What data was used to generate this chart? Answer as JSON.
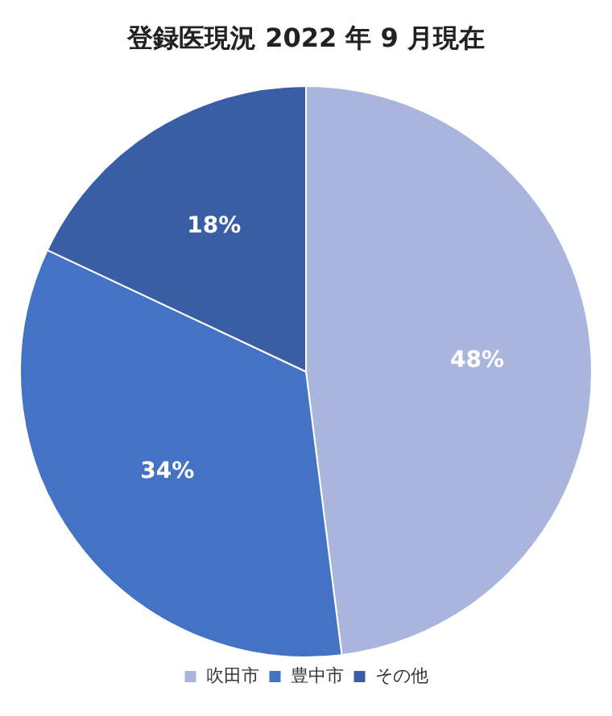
{
  "chart_data": {
    "type": "pie",
    "title": "登録医現況 2022 年 9 月現在",
    "categories": [
      "吹田市",
      "豊中市",
      "その他"
    ],
    "values": [
      48,
      34,
      18
    ],
    "colors": [
      "#a9b5dc",
      "#4472c4",
      "#3a5ea6"
    ],
    "value_labels": [
      "48%",
      "34%",
      "18%"
    ],
    "legend": "bottom"
  }
}
